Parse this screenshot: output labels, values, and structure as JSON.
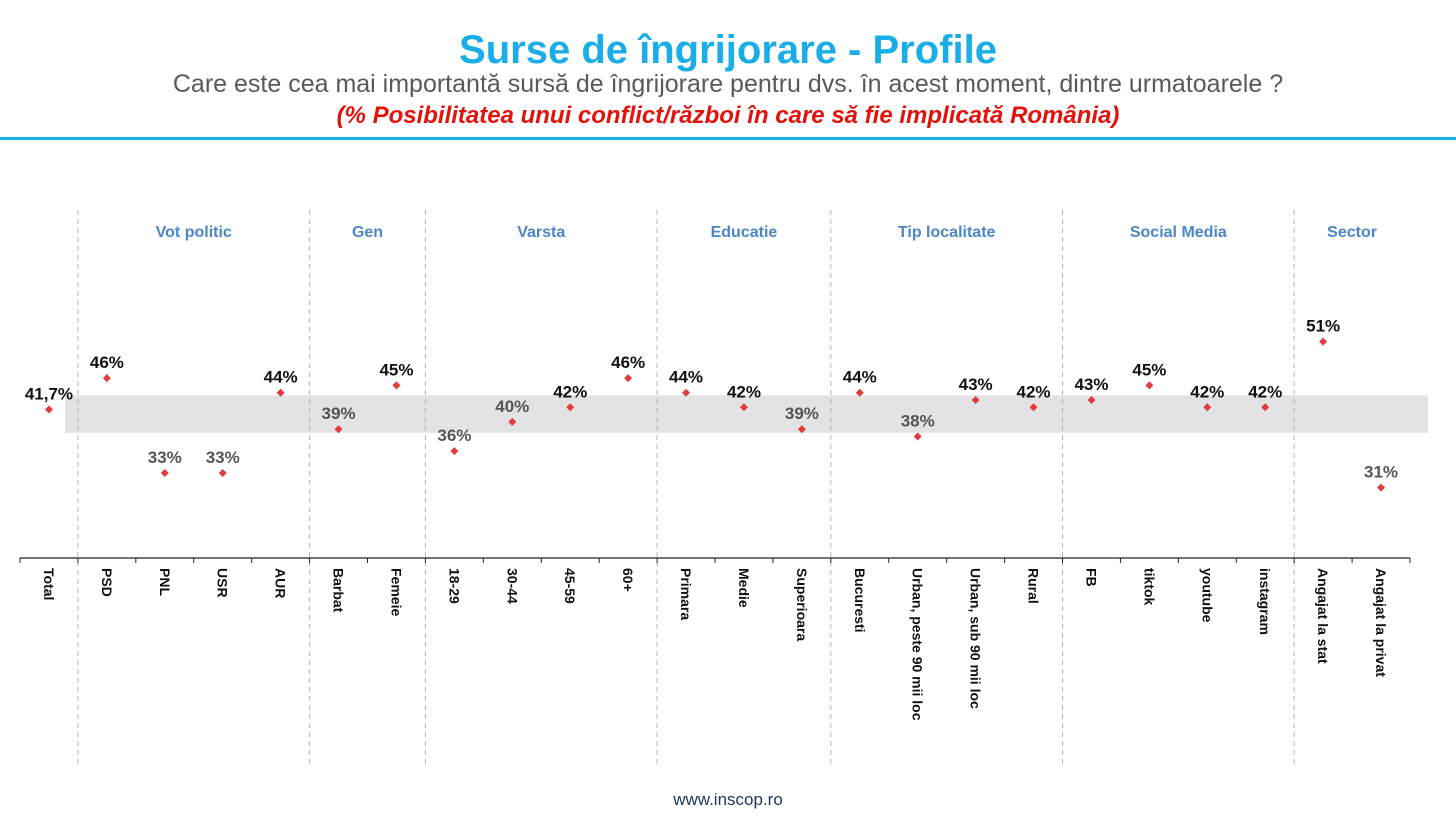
{
  "title": "Surse de îngrijorare - Profile",
  "subtitle": "Care este cea mai importantă sursă de îngrijorare pentru dvs. în acest moment, dintre urmatoarele ?",
  "highlight": "(% Posibilitatea unui conflict/război în care să fie implicată România)",
  "footer": "www.inscop.ro",
  "colors": {
    "title": "#1aaee8",
    "highlight": "#e3120b",
    "marker": "#e03c3c",
    "group_label": "#4a86c8",
    "band": "#e3e3e5"
  },
  "chart_data": {
    "type": "scatter",
    "categories": [
      "Total",
      "PSD",
      "PNL",
      "USR",
      "AUR",
      "Barbat",
      "Femeie",
      "18-29",
      "30-44",
      "45-59",
      "60+",
      "Primara",
      "Medie",
      "Superioara",
      "Bucuresti",
      "Urban, peste 90 mii loc",
      "Urban, sub 90 mii loc",
      "Rural",
      "FB",
      "tiktok",
      "youtube",
      "instagram",
      "Angajat la stat",
      "Angajat la privat"
    ],
    "values": [
      41.7,
      46,
      33,
      33,
      44,
      39,
      45,
      36,
      40,
      42,
      46,
      44,
      42,
      39,
      44,
      38,
      43,
      42,
      43,
      45,
      42,
      42,
      51,
      31
    ],
    "labels": [
      "41,7%",
      "46%",
      "33%",
      "33%",
      "44%",
      "39%",
      "45%",
      "36%",
      "40%",
      "42%",
      "46%",
      "44%",
      "42%",
      "39%",
      "44%",
      "38%",
      "43%",
      "42%",
      "43%",
      "45%",
      "42%",
      "42%",
      "51%",
      "31%"
    ],
    "groups": [
      {
        "name": "Vot politic",
        "start": 1,
        "end": 4
      },
      {
        "name": "Gen",
        "start": 5,
        "end": 6
      },
      {
        "name": "Varsta",
        "start": 7,
        "end": 10
      },
      {
        "name": "Educatie",
        "start": 11,
        "end": 13
      },
      {
        "name": "Tip localitate",
        "start": 14,
        "end": 17
      },
      {
        "name": "Social Media",
        "start": 18,
        "end": 21
      },
      {
        "name": "Sector",
        "start": 22,
        "end": 23
      }
    ],
    "reference_band": [
      37,
      42
    ]
  }
}
